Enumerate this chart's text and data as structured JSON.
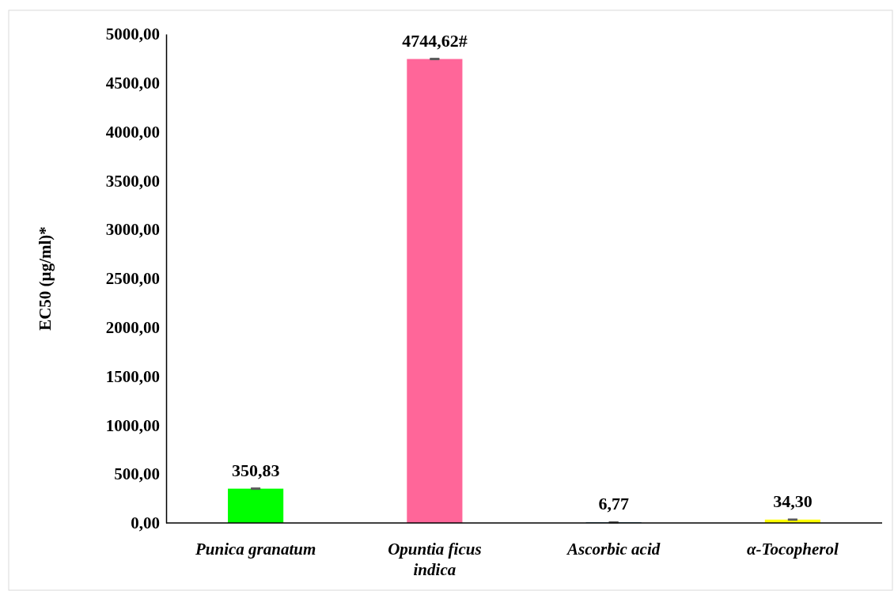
{
  "chart_data": {
    "type": "bar",
    "ylabel": "EC50 (µg/ml)*",
    "categories": [
      "Punica granatum",
      "Opuntia ficus indica",
      "Ascorbic acid",
      "α-Tocopherol"
    ],
    "values": [
      350.83,
      4744.62,
      6.77,
      34.3
    ],
    "colors": [
      "#00ff00",
      "#ff6699",
      "#2e6f8e",
      "#ffff00"
    ],
    "errors": [
      4,
      4,
      2,
      3
    ],
    "value_labels": [
      "350,83",
      "4744,62#",
      "6,77",
      "34,30"
    ],
    "ylim": [
      0,
      5000
    ],
    "yticks": [
      {
        "value": 0,
        "label": "0,00"
      },
      {
        "value": 500,
        "label": "500,00"
      },
      {
        "value": 1000,
        "label": "1000,00"
      },
      {
        "value": 1500,
        "label": "1500,00"
      },
      {
        "value": 2000,
        "label": "2000,00"
      },
      {
        "value": 2500,
        "label": "2500,00"
      },
      {
        "value": 3000,
        "label": "3000,00"
      },
      {
        "value": 3500,
        "label": "3500,00"
      },
      {
        "value": 4000,
        "label": "4000,00"
      },
      {
        "value": 4500,
        "label": "4500,00"
      },
      {
        "value": 5000,
        "label": "5000,00"
      }
    ],
    "grid": false
  }
}
